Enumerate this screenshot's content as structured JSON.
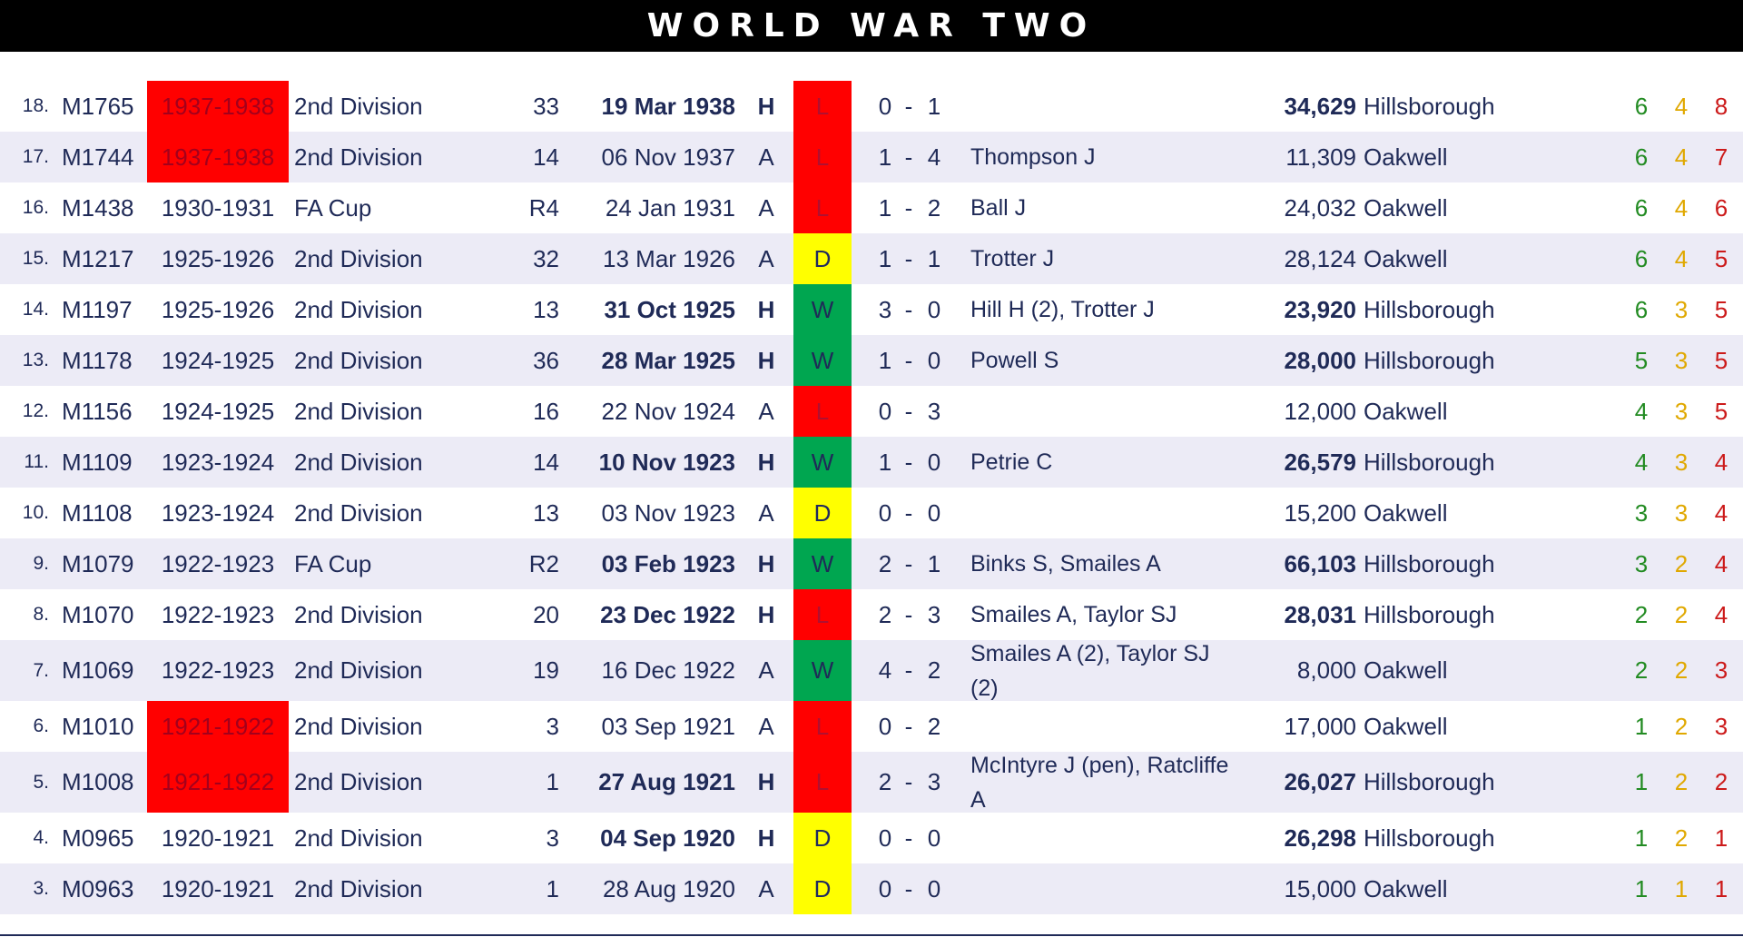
{
  "title": "WORLD WAR TWO",
  "rows": [
    {
      "num": "18.",
      "code": "M1765",
      "season": "1937-1938",
      "season_hl": true,
      "comp": "2nd Division",
      "round": "33",
      "date": "19 Mar 1938",
      "ha": "H",
      "result": "L",
      "hs": "0",
      "as": "1",
      "scorers": "",
      "att": "34,629",
      "venue": "Hillsborough",
      "w": "6",
      "d": "4",
      "l": "8"
    },
    {
      "num": "17.",
      "code": "M1744",
      "season": "1937-1938",
      "season_hl": true,
      "comp": "2nd Division",
      "round": "14",
      "date": "06 Nov 1937",
      "ha": "A",
      "result": "L",
      "hs": "1",
      "as": "4",
      "scorers": "Thompson J",
      "att": "11,309",
      "venue": "Oakwell",
      "w": "6",
      "d": "4",
      "l": "7"
    },
    {
      "num": "16.",
      "code": "M1438",
      "season": "1930-1931",
      "season_hl": false,
      "comp": "FA Cup",
      "round": "R4",
      "date": "24 Jan 1931",
      "ha": "A",
      "result": "L",
      "hs": "1",
      "as": "2",
      "scorers": "Ball J",
      "att": "24,032",
      "venue": "Oakwell",
      "w": "6",
      "d": "4",
      "l": "6"
    },
    {
      "num": "15.",
      "code": "M1217",
      "season": "1925-1926",
      "season_hl": false,
      "comp": "2nd Division",
      "round": "32",
      "date": "13 Mar 1926",
      "ha": "A",
      "result": "D",
      "hs": "1",
      "as": "1",
      "scorers": "Trotter J",
      "att": "28,124",
      "venue": "Oakwell",
      "w": "6",
      "d": "4",
      "l": "5"
    },
    {
      "num": "14.",
      "code": "M1197",
      "season": "1925-1926",
      "season_hl": false,
      "comp": "2nd Division",
      "round": "13",
      "date": "31 Oct 1925",
      "ha": "H",
      "result": "W",
      "hs": "3",
      "as": "0",
      "scorers": "Hill H (2), Trotter J",
      "att": "23,920",
      "venue": "Hillsborough",
      "w": "6",
      "d": "3",
      "l": "5"
    },
    {
      "num": "13.",
      "code": "M1178",
      "season": "1924-1925",
      "season_hl": false,
      "comp": "2nd Division",
      "round": "36",
      "date": "28 Mar 1925",
      "ha": "H",
      "result": "W",
      "hs": "1",
      "as": "0",
      "scorers": "Powell S",
      "att": "28,000",
      "venue": "Hillsborough",
      "w": "5",
      "d": "3",
      "l": "5"
    },
    {
      "num": "12.",
      "code": "M1156",
      "season": "1924-1925",
      "season_hl": false,
      "comp": "2nd Division",
      "round": "16",
      "date": "22 Nov 1924",
      "ha": "A",
      "result": "L",
      "hs": "0",
      "as": "3",
      "scorers": "",
      "att": "12,000",
      "venue": "Oakwell",
      "w": "4",
      "d": "3",
      "l": "5"
    },
    {
      "num": "11.",
      "code": "M1109",
      "season": "1923-1924",
      "season_hl": false,
      "comp": "2nd Division",
      "round": "14",
      "date": "10 Nov 1923",
      "ha": "H",
      "result": "W",
      "hs": "1",
      "as": "0",
      "scorers": "Petrie C",
      "att": "26,579",
      "venue": "Hillsborough",
      "w": "4",
      "d": "3",
      "l": "4"
    },
    {
      "num": "10.",
      "code": "M1108",
      "season": "1923-1924",
      "season_hl": false,
      "comp": "2nd Division",
      "round": "13",
      "date": "03 Nov 1923",
      "ha": "A",
      "result": "D",
      "hs": "0",
      "as": "0",
      "scorers": "",
      "att": "15,200",
      "venue": "Oakwell",
      "w": "3",
      "d": "3",
      "l": "4"
    },
    {
      "num": "9.",
      "code": "M1079",
      "season": "1922-1923",
      "season_hl": false,
      "comp": "FA Cup",
      "round": "R2",
      "date": "03 Feb 1923",
      "ha": "H",
      "result": "W",
      "hs": "2",
      "as": "1",
      "scorers": "Binks S, Smailes A",
      "att": "66,103",
      "venue": "Hillsborough",
      "w": "3",
      "d": "2",
      "l": "4"
    },
    {
      "num": "8.",
      "code": "M1070",
      "season": "1922-1923",
      "season_hl": false,
      "comp": "2nd Division",
      "round": "20",
      "date": "23 Dec 1922",
      "ha": "H",
      "result": "L",
      "hs": "2",
      "as": "3",
      "scorers": "Smailes A, Taylor SJ",
      "att": "28,031",
      "venue": "Hillsborough",
      "w": "2",
      "d": "2",
      "l": "4"
    },
    {
      "num": "7.",
      "code": "M1069",
      "season": "1922-1923",
      "season_hl": false,
      "comp": "2nd Division",
      "round": "19",
      "date": "16 Dec 1922",
      "ha": "A",
      "result": "W",
      "hs": "4",
      "as": "2",
      "scorers": "Smailes A (2), Taylor SJ (2)",
      "att": "8,000",
      "venue": "Oakwell",
      "w": "2",
      "d": "2",
      "l": "3"
    },
    {
      "num": "6.",
      "code": "M1010",
      "season": "1921-1922",
      "season_hl": true,
      "comp": "2nd Division",
      "round": "3",
      "date": "03 Sep 1921",
      "ha": "A",
      "result": "L",
      "hs": "0",
      "as": "2",
      "scorers": "",
      "att": "17,000",
      "venue": "Oakwell",
      "w": "1",
      "d": "2",
      "l": "3"
    },
    {
      "num": "5.",
      "code": "M1008",
      "season": "1921-1922",
      "season_hl": true,
      "comp": "2nd Division",
      "round": "1",
      "date": "27 Aug 1921",
      "ha": "H",
      "result": "L",
      "hs": "2",
      "as": "3",
      "scorers": "McIntyre J (pen), Ratcliffe A",
      "att": "26,027",
      "venue": "Hillsborough",
      "w": "1",
      "d": "2",
      "l": "2"
    },
    {
      "num": "4.",
      "code": "M0965",
      "season": "1920-1921",
      "season_hl": false,
      "comp": "2nd Division",
      "round": "3",
      "date": "04 Sep 1920",
      "ha": "H",
      "result": "D",
      "hs": "0",
      "as": "0",
      "scorers": "",
      "att": "26,298",
      "venue": "Hillsborough",
      "w": "1",
      "d": "2",
      "l": "1"
    },
    {
      "num": "3.",
      "code": "M0963",
      "season": "1920-1921",
      "season_hl": false,
      "comp": "2nd Division",
      "round": "1",
      "date": "28 Aug 1920",
      "ha": "A",
      "result": "D",
      "hs": "0",
      "as": "0",
      "scorers": "",
      "att": "15,000",
      "venue": "Oakwell",
      "w": "1",
      "d": "1",
      "l": "1"
    }
  ],
  "dash": "-",
  "colors": {
    "banner_bg": "#000000",
    "text": "#1f2a57",
    "row_alt": "#ecebf6",
    "loss": "#ff0000",
    "draw": "#ffff00",
    "win": "#00a650",
    "wins_count": "#228b22",
    "draws_count": "#e0a800",
    "losses_count": "#cc1a1a"
  }
}
